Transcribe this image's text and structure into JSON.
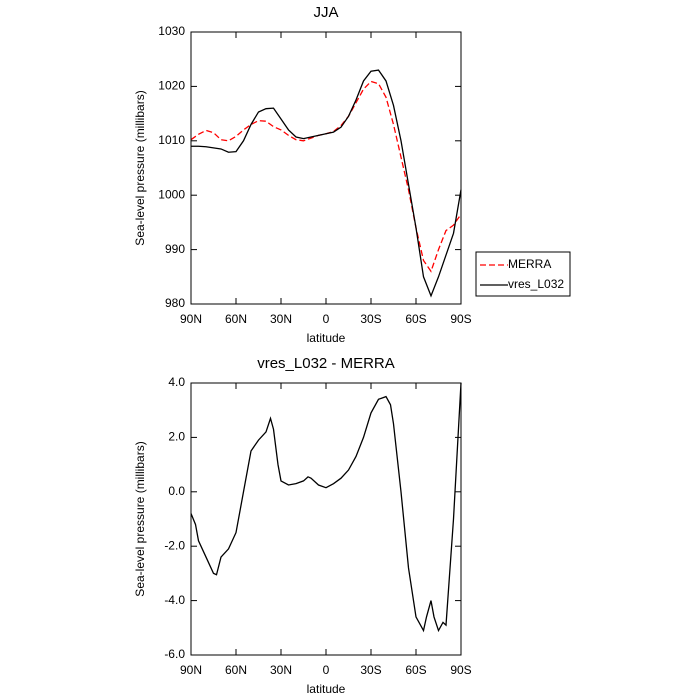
{
  "chart_data": [
    {
      "type": "line",
      "title": "JJA",
      "x_label": "latitude",
      "y_label": "Sea-level pressure (millibars)",
      "x": [
        90,
        85,
        80,
        75,
        70,
        65,
        60,
        55,
        50,
        45,
        40,
        35,
        30,
        25,
        20,
        15,
        10,
        5,
        0,
        -5,
        -10,
        -15,
        -20,
        -25,
        -30,
        -35,
        -40,
        -45,
        -50,
        -55,
        -60,
        -65,
        -70,
        -75,
        -80,
        -85,
        -90
      ],
      "series": [
        {
          "name": "MERRA",
          "color": "#ff0000",
          "dash": true,
          "values": [
            1010.2,
            1011.2,
            1011.9,
            1011.5,
            1010.2,
            1010,
            1010.8,
            1012,
            1013,
            1013.7,
            1013.6,
            1012.6,
            1012,
            1011,
            1010.2,
            1010,
            1010.5,
            1011,
            1011.3,
            1011.7,
            1012.8,
            1014.5,
            1017,
            1019.5,
            1020.9,
            1020.5,
            1018,
            1013,
            1007,
            1001,
            994,
            988,
            986,
            990,
            993.5,
            994.5,
            996.5
          ]
        },
        {
          "name": "vres_L032",
          "color": "#000000",
          "dash": false,
          "values": [
            1009,
            1009,
            1008.9,
            1008.7,
            1008.5,
            1007.9,
            1008,
            1010,
            1013,
            1015.3,
            1015.9,
            1016,
            1014,
            1012,
            1010.7,
            1010.4,
            1010.7,
            1011,
            1011.3,
            1011.6,
            1012.5,
            1014.5,
            1017.5,
            1021,
            1022.8,
            1023,
            1021,
            1016.5,
            1010,
            1002,
            994,
            985,
            981.5,
            985,
            989,
            993,
            1001
          ]
        }
      ],
      "xlim": [
        90,
        -90
      ],
      "xticks": [
        {
          "value": 90,
          "label": "90N"
        },
        {
          "value": 60,
          "label": "60N"
        },
        {
          "value": 30,
          "label": "30N"
        },
        0,
        {
          "value": -30,
          "label": "30S"
        },
        {
          "value": -60,
          "label": "60S"
        },
        {
          "value": -90,
          "label": "90S"
        }
      ],
      "ylim": [
        980,
        1030
      ],
      "yticks": [
        980,
        990,
        1000,
        1010,
        1020,
        1030
      ],
      "legend": "right"
    },
    {
      "type": "line",
      "title": "vres_L032 - MERRA",
      "x_label": "latitude",
      "y_label": "Sea-level pressure (millibars)",
      "x": [
        90,
        87,
        85,
        80,
        75,
        73,
        70,
        65,
        60,
        55,
        50,
        45,
        40,
        37,
        35,
        32,
        30,
        25,
        20,
        15,
        12,
        10,
        5,
        0,
        -5,
        -10,
        -15,
        -20,
        -25,
        -30,
        -35,
        -40,
        -43,
        -45,
        -50,
        -55,
        -60,
        -65,
        -67,
        -70,
        -72,
        -75,
        -78,
        -80,
        -85,
        -90
      ],
      "series": [
        {
          "name": "vres_L032 - MERRA",
          "color": "#000000",
          "dash": false,
          "values": [
            -0.8,
            -1.2,
            -1.8,
            -2.4,
            -3.0,
            -3.05,
            -2.4,
            -2.1,
            -1.5,
            0,
            1.5,
            1.9,
            2.2,
            2.7,
            2.3,
            1.0,
            0.4,
            0.25,
            0.3,
            0.4,
            0.55,
            0.5,
            0.25,
            0.15,
            0.3,
            0.5,
            0.8,
            1.3,
            2.0,
            2.9,
            3.4,
            3.5,
            3.2,
            2.5,
            0,
            -2.8,
            -4.6,
            -5.1,
            -4.6,
            -4.0,
            -4.6,
            -5.1,
            -4.8,
            -4.9,
            -1.0,
            4.0
          ]
        }
      ],
      "xlim": [
        90,
        -90
      ],
      "xticks": [
        {
          "value": 90,
          "label": "90N"
        },
        {
          "value": 60,
          "label": "60N"
        },
        {
          "value": 30,
          "label": "30N"
        },
        0,
        {
          "value": -30,
          "label": "30S"
        },
        {
          "value": -60,
          "label": "60S"
        },
        {
          "value": -90,
          "label": "90S"
        }
      ],
      "ylim": [
        -6,
        4
      ],
      "yticks": [
        {
          "value": -6,
          "label": "-6.0"
        },
        {
          "value": -4,
          "label": "-4.0"
        },
        {
          "value": -2,
          "label": "-2.0"
        },
        {
          "value": 0,
          "label": "0.0"
        },
        {
          "value": 2,
          "label": "2.0"
        },
        {
          "value": 4,
          "label": "4.0"
        }
      ]
    }
  ]
}
